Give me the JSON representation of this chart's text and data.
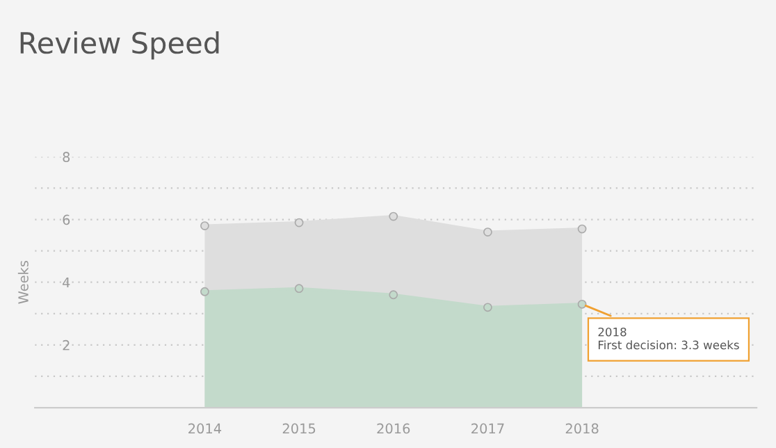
{
  "chart_data": {
    "type": "area",
    "title": "Review Speed",
    "ylabel": "Weeks",
    "x": [
      2014,
      2015,
      2016,
      2017,
      2018
    ],
    "series": [
      {
        "color": "#dedede",
        "values": [
          5.8,
          5.9,
          6.1,
          5.6,
          5.7
        ]
      },
      {
        "color": "#c3dacb",
        "values": [
          3.7,
          3.8,
          3.6,
          3.2,
          3.3
        ]
      }
    ],
    "xlim": [
      2012.2,
      2019.85
    ],
    "xticks": [
      2014,
      2015,
      2016,
      2017,
      2018
    ],
    "ylim": [
      0,
      8
    ],
    "yticks": [
      {
        "value": 1,
        "label": null
      },
      2,
      {
        "value": 3,
        "label": null
      },
      4,
      {
        "value": 5,
        "label": null
      },
      6,
      {
        "value": 7,
        "label": null
      },
      8
    ],
    "grid": "y",
    "marker": "circle",
    "legend": false,
    "annotations": [
      {
        "text": "2018\nFirst decision: 3.3 weeks",
        "x": 2018,
        "y": 3.3
      }
    ]
  }
}
